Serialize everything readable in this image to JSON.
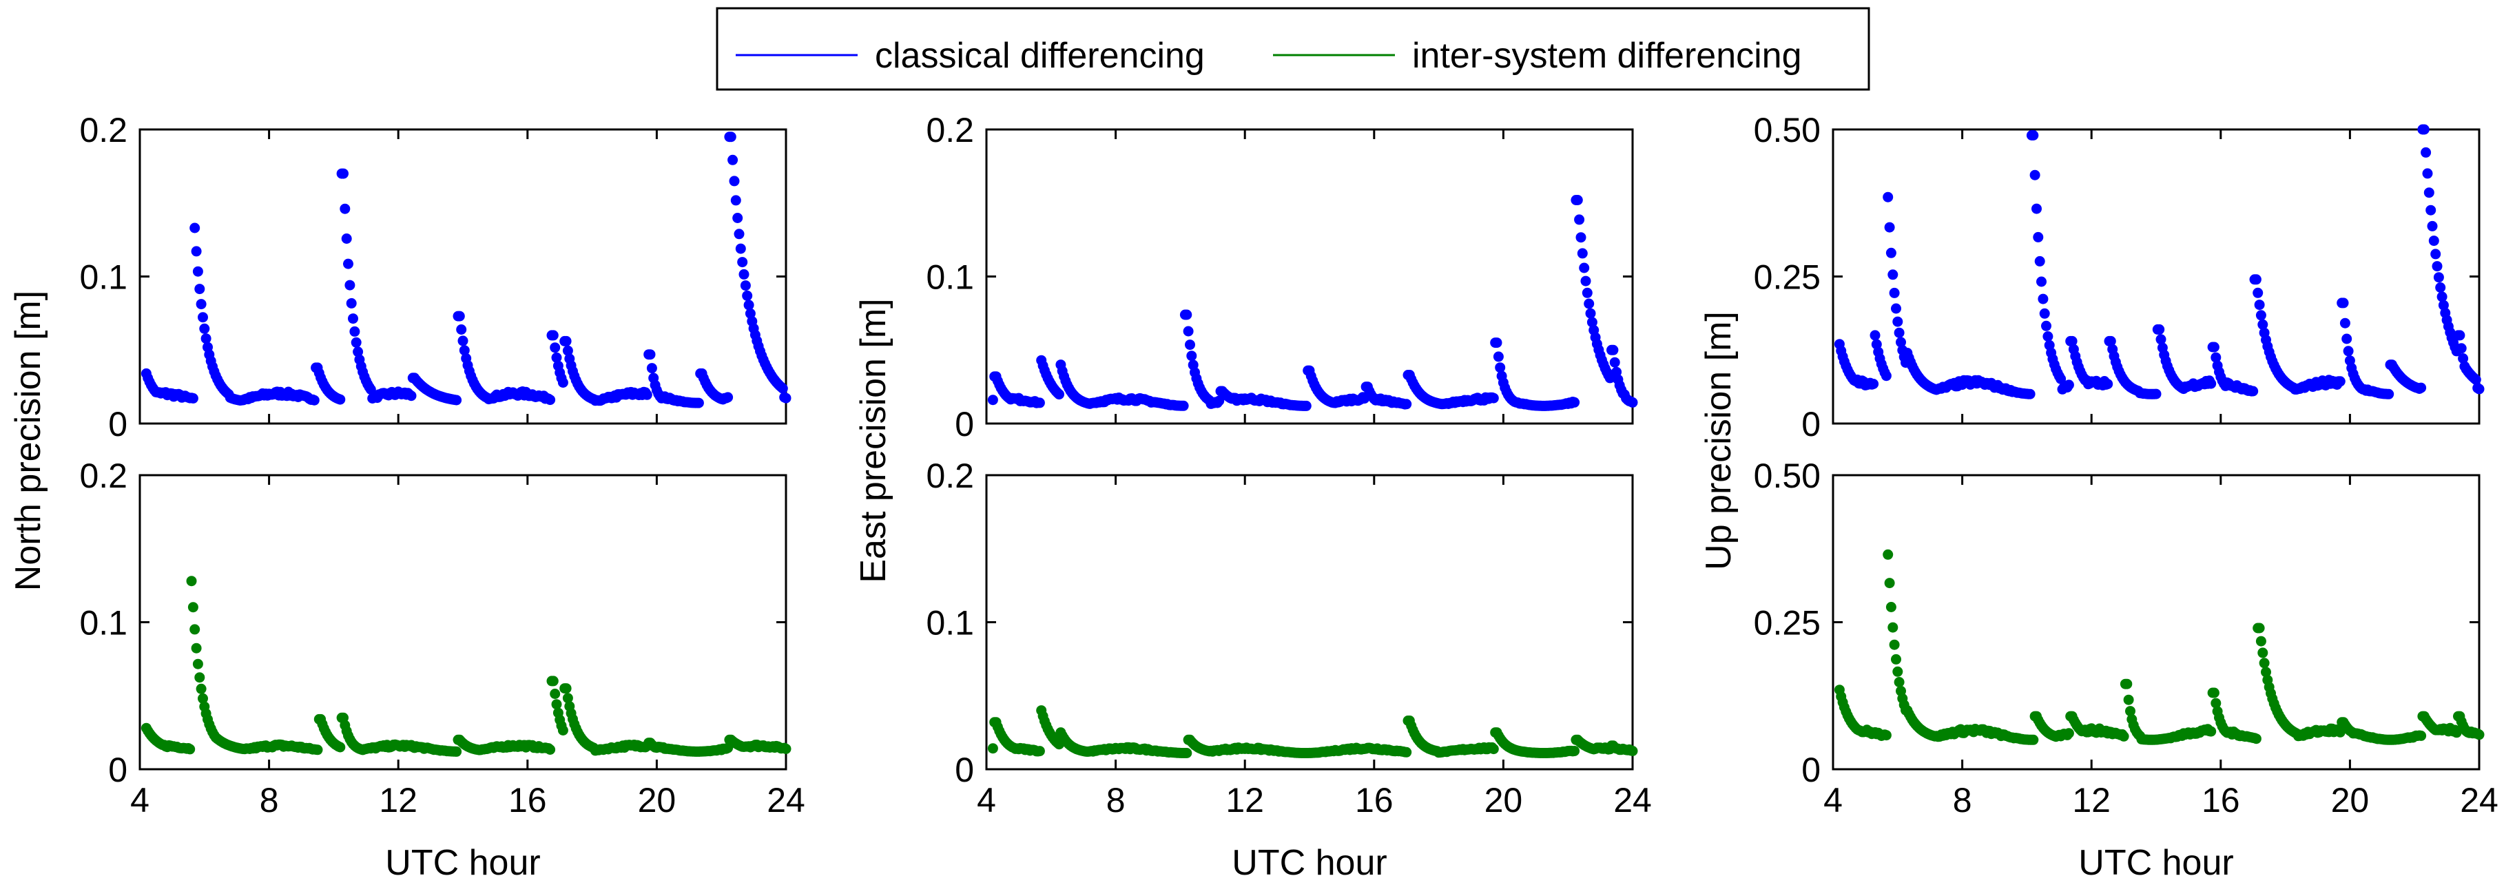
{
  "legend": {
    "placement": "top-center",
    "entries": [
      {
        "name": "classical differencing",
        "color": "#0000ff"
      },
      {
        "name": "inter-system differencing",
        "color": "#008000"
      }
    ]
  },
  "chart_data": [
    {
      "type": "scatter",
      "ylabel": "North precision [m]",
      "xlim": [
        4,
        24
      ],
      "ylim": [
        0,
        0.2
      ],
      "xticks": [
        4,
        8,
        12,
        16,
        20,
        24
      ],
      "yticks": [
        {
          "v": 0,
          "label": "0"
        },
        {
          "v": 0.1,
          "label": "0.1"
        },
        {
          "v": 0.2,
          "label": "0.2"
        }
      ],
      "grid": false,
      "series": [
        {
          "name": "classical differencing",
          "color": "#0000ff",
          "baseline": 0.014,
          "amp": 0.008,
          "bumps": [
            [
              4.2,
              0.034,
              0.3
            ],
            [
              5.7,
              0.133,
              0.35
            ],
            [
              6.2,
              0.03,
              0.4
            ],
            [
              9.5,
              0.038,
              0.3
            ],
            [
              10.3,
              0.17,
              0.3
            ],
            [
              12.5,
              0.031,
              0.6
            ],
            [
              13.9,
              0.073,
              0.3
            ],
            [
              16.8,
              0.06,
              0.25
            ],
            [
              17.2,
              0.056,
              0.3
            ],
            [
              19.8,
              0.047,
              0.15
            ],
            [
              21.4,
              0.034,
              0.3
            ],
            [
              22.3,
              0.195,
              0.55
            ]
          ]
        }
      ],
      "xlabel": ""
    },
    {
      "type": "scatter",
      "ylabel": "",
      "xlim": [
        4,
        24
      ],
      "ylim": [
        0,
        0.2
      ],
      "xticks": [
        4,
        8,
        12,
        16,
        20,
        24
      ],
      "yticks": [
        {
          "v": 0,
          "label": "0"
        },
        {
          "v": 0.1,
          "label": "0.1"
        },
        {
          "v": 0.2,
          "label": "0.2"
        }
      ],
      "grid": false,
      "series": [
        {
          "name": "inter-system differencing",
          "color": "#008000",
          "baseline": 0.012,
          "amp": 0.005,
          "bumps": [
            [
              4.2,
              0.028,
              0.4
            ],
            [
              5.6,
              0.128,
              0.3
            ],
            [
              6.2,
              0.025,
              0.5
            ],
            [
              9.6,
              0.034,
              0.3
            ],
            [
              10.3,
              0.035,
              0.2
            ],
            [
              13.9,
              0.02,
              0.3
            ],
            [
              16.8,
              0.06,
              0.25
            ],
            [
              17.2,
              0.055,
              0.3
            ],
            [
              19.8,
              0.018,
              0.2
            ],
            [
              22.3,
              0.02,
              0.4
            ]
          ]
        }
      ],
      "xlabel": "UTC hour"
    },
    {
      "type": "scatter",
      "ylabel": "East precision [m]",
      "xlim": [
        4,
        24
      ],
      "ylim": [
        0,
        0.2
      ],
      "xticks": [
        4,
        8,
        12,
        16,
        20,
        24
      ],
      "yticks": [
        {
          "v": 0,
          "label": "0"
        },
        {
          "v": 0.1,
          "label": "0.1"
        },
        {
          "v": 0.2,
          "label": "0.2"
        }
      ],
      "grid": false,
      "series": [
        {
          "name": "classical differencing",
          "color": "#0000ff",
          "baseline": 0.012,
          "amp": 0.006,
          "bumps": [
            [
              4.3,
              0.032,
              0.3
            ],
            [
              5.7,
              0.043,
              0.4
            ],
            [
              6.3,
              0.04,
              0.3
            ],
            [
              10.2,
              0.074,
              0.25
            ],
            [
              11.3,
              0.022,
              0.4
            ],
            [
              14.0,
              0.036,
              0.3
            ],
            [
              15.8,
              0.025,
              0.2
            ],
            [
              17.1,
              0.033,
              0.35
            ],
            [
              19.8,
              0.055,
              0.2
            ],
            [
              22.3,
              0.152,
              0.5
            ],
            [
              23.4,
              0.05,
              0.2
            ]
          ]
        }
      ],
      "xlabel": ""
    },
    {
      "type": "scatter",
      "ylabel": "",
      "xlim": [
        4,
        24
      ],
      "ylim": [
        0,
        0.2
      ],
      "xticks": [
        4,
        8,
        12,
        16,
        20,
        24
      ],
      "yticks": [
        {
          "v": 0,
          "label": "0"
        },
        {
          "v": 0.1,
          "label": "0.1"
        },
        {
          "v": 0.2,
          "label": "0.2"
        }
      ],
      "grid": false,
      "series": [
        {
          "name": "inter-system differencing",
          "color": "#008000",
          "baseline": 0.011,
          "amp": 0.004,
          "bumps": [
            [
              4.3,
              0.032,
              0.3
            ],
            [
              5.7,
              0.04,
              0.35
            ],
            [
              6.3,
              0.025,
              0.3
            ],
            [
              10.3,
              0.02,
              0.3
            ],
            [
              17.1,
              0.033,
              0.3
            ],
            [
              19.8,
              0.025,
              0.3
            ],
            [
              22.3,
              0.02,
              0.4
            ],
            [
              23.4,
              0.016,
              0.2
            ]
          ]
        }
      ],
      "xlabel": "UTC hour"
    },
    {
      "type": "scatter",
      "ylabel": "Up precision [m]",
      "xlim": [
        4,
        24
      ],
      "ylim": [
        0,
        0.5
      ],
      "xticks": [
        4,
        8,
        12,
        16,
        20,
        24
      ],
      "yticks": [
        {
          "v": 0,
          "label": "0"
        },
        {
          "v": 0.25,
          "label": "0.25"
        },
        {
          "v": 0.5,
          "label": "0.50"
        }
      ],
      "grid": false,
      "series": [
        {
          "name": "classical differencing",
          "color": "#0000ff",
          "baseline": 0.05,
          "amp": 0.025,
          "bumps": [
            [
              4.2,
              0.135,
              0.35
            ],
            [
              5.3,
              0.15,
              0.3
            ],
            [
              5.7,
              0.385,
              0.3
            ],
            [
              6.3,
              0.12,
              0.4
            ],
            [
              10.2,
              0.49,
              0.3
            ],
            [
              11.4,
              0.14,
              0.3
            ],
            [
              12.6,
              0.14,
              0.3
            ],
            [
              14.1,
              0.16,
              0.3
            ],
            [
              15.8,
              0.13,
              0.2
            ],
            [
              17.1,
              0.245,
              0.4
            ],
            [
              19.8,
              0.205,
              0.2
            ],
            [
              21.3,
              0.1,
              0.5
            ],
            [
              22.3,
              0.5,
              0.55
            ],
            [
              23.4,
              0.15,
              0.2
            ]
          ]
        }
      ],
      "xlabel": ""
    },
    {
      "type": "scatter",
      "ylabel": "",
      "xlim": [
        4,
        24
      ],
      "ylim": [
        0,
        0.5
      ],
      "xticks": [
        4,
        8,
        12,
        16,
        20,
        24
      ],
      "yticks": [
        {
          "v": 0,
          "label": "0"
        },
        {
          "v": 0.25,
          "label": "0.25"
        },
        {
          "v": 0.5,
          "label": "0.50"
        }
      ],
      "grid": false,
      "series": [
        {
          "name": "inter-system differencing",
          "color": "#008000",
          "baseline": 0.05,
          "amp": 0.02,
          "bumps": [
            [
              4.2,
              0.135,
              0.35
            ],
            [
              5.7,
              0.365,
              0.3
            ],
            [
              6.3,
              0.1,
              0.4
            ],
            [
              10.3,
              0.09,
              0.3
            ],
            [
              11.4,
              0.09,
              0.3
            ],
            [
              13.1,
              0.145,
              0.15
            ],
            [
              15.8,
              0.13,
              0.2
            ],
            [
              17.2,
              0.24,
              0.4
            ],
            [
              19.8,
              0.08,
              0.3
            ],
            [
              22.3,
              0.09,
              0.4
            ],
            [
              23.4,
              0.09,
              0.2
            ]
          ]
        }
      ],
      "xlabel": "UTC hour"
    }
  ]
}
